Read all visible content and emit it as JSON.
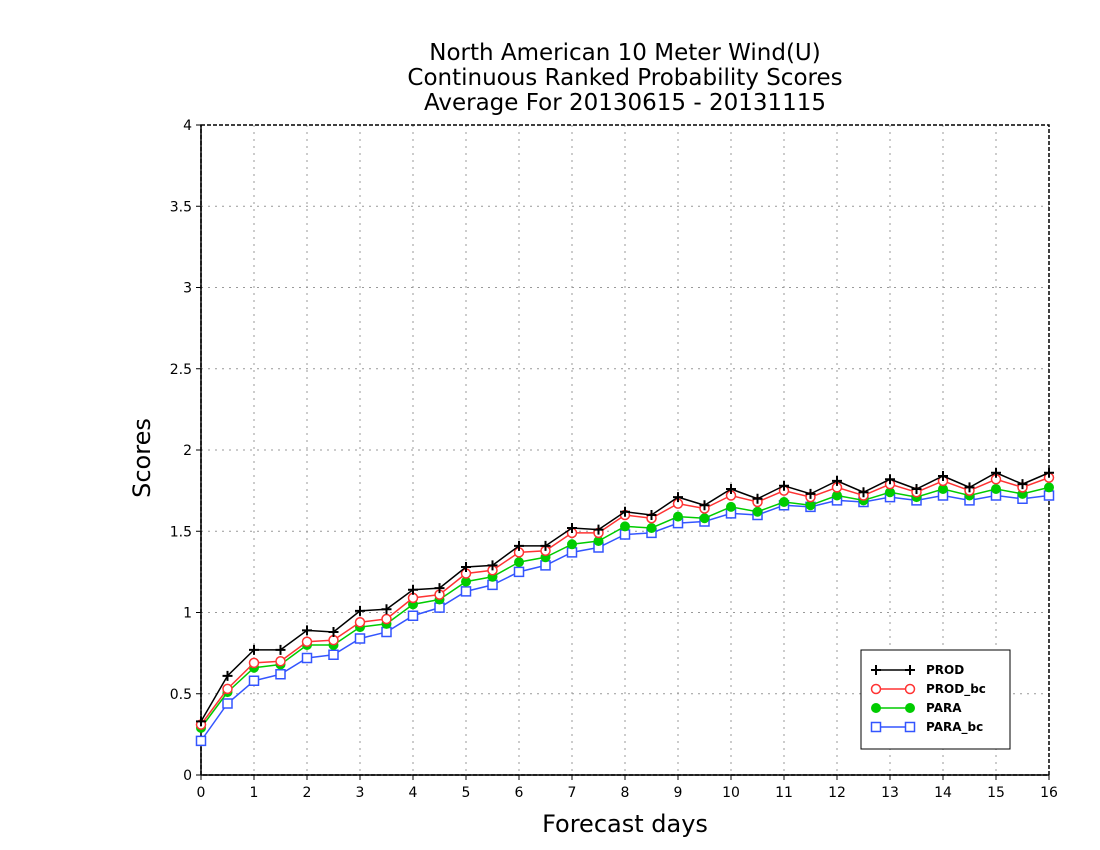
{
  "chart_data": {
    "type": "line",
    "title": [
      "North American 10 Meter Wind(U)",
      "Continuous Ranked Probability Scores",
      "Average For 20130615 - 20131115"
    ],
    "xlabel": "Forecast days",
    "ylabel": "Scores",
    "xlim": [
      0,
      16
    ],
    "ylim": [
      0,
      4
    ],
    "x_ticks": [
      "0",
      "1",
      "2",
      "3",
      "4",
      "5",
      "6",
      "7",
      "8",
      "9",
      "10",
      "11",
      "12",
      "13",
      "14",
      "15",
      "16"
    ],
    "y_ticks": [
      "0",
      "0.5",
      "1",
      "1.5",
      "2",
      "2.5",
      "3",
      "3.5",
      "4"
    ],
    "grid": true,
    "legend_position": "bottom-right",
    "x": [
      0,
      0.5,
      1,
      1.5,
      2,
      2.5,
      3,
      3.5,
      4,
      4.5,
      5,
      5.5,
      6,
      6.5,
      7,
      7.5,
      8,
      8.5,
      9,
      9.5,
      10,
      10.5,
      11,
      11.5,
      12,
      12.5,
      13,
      13.5,
      14,
      14.5,
      15,
      15.5,
      16
    ],
    "series": [
      {
        "name": "PROD",
        "color": "#000000",
        "marker": "plus",
        "values": [
          0.33,
          0.61,
          0.77,
          0.77,
          0.89,
          0.88,
          1.01,
          1.02,
          1.14,
          1.15,
          1.28,
          1.29,
          1.41,
          1.41,
          1.52,
          1.51,
          1.62,
          1.6,
          1.71,
          1.66,
          1.76,
          1.7,
          1.78,
          1.73,
          1.81,
          1.74,
          1.82,
          1.76,
          1.84,
          1.77,
          1.86,
          1.79,
          1.86
        ]
      },
      {
        "name": "PROD_bc",
        "color": "#ff3333",
        "marker": "open-circle",
        "values": [
          0.31,
          0.53,
          0.69,
          0.7,
          0.82,
          0.83,
          0.94,
          0.96,
          1.09,
          1.11,
          1.24,
          1.26,
          1.37,
          1.38,
          1.49,
          1.49,
          1.6,
          1.58,
          1.67,
          1.64,
          1.72,
          1.68,
          1.75,
          1.71,
          1.77,
          1.72,
          1.79,
          1.74,
          1.81,
          1.75,
          1.82,
          1.77,
          1.83
        ]
      },
      {
        "name": "PARA",
        "color": "#00cc00",
        "marker": "filled-circle",
        "values": [
          0.29,
          0.51,
          0.66,
          0.68,
          0.8,
          0.8,
          0.91,
          0.93,
          1.05,
          1.08,
          1.19,
          1.22,
          1.31,
          1.34,
          1.42,
          1.44,
          1.53,
          1.52,
          1.59,
          1.58,
          1.65,
          1.62,
          1.68,
          1.66,
          1.72,
          1.69,
          1.74,
          1.71,
          1.76,
          1.72,
          1.76,
          1.73,
          1.77
        ]
      },
      {
        "name": "PARA_bc",
        "color": "#3355ff",
        "marker": "open-square",
        "values": [
          0.21,
          0.44,
          0.58,
          0.62,
          0.72,
          0.74,
          0.84,
          0.88,
          0.98,
          1.03,
          1.13,
          1.17,
          1.25,
          1.29,
          1.37,
          1.4,
          1.48,
          1.49,
          1.55,
          1.56,
          1.61,
          1.6,
          1.66,
          1.65,
          1.69,
          1.68,
          1.71,
          1.69,
          1.72,
          1.69,
          1.72,
          1.7,
          1.72
        ]
      }
    ]
  }
}
